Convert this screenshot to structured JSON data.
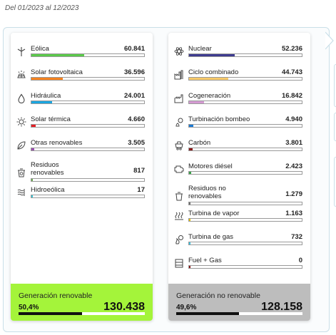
{
  "period": "Del 01/2023 al 12/2023",
  "renewable": {
    "items": [
      {
        "label": "Eólica",
        "value": "60.841",
        "share": 0.466,
        "color": "#5ac94a",
        "icon": "wind-turbine-icon"
      },
      {
        "label": "Solar fotovoltaica",
        "value": "36.596",
        "share": 0.281,
        "color": "#f5821f",
        "icon": "solar-panel-icon"
      },
      {
        "label": "Hidráulica",
        "value": "24.001",
        "share": 0.184,
        "color": "#1aa6e1",
        "icon": "water-drop-icon"
      },
      {
        "label": "Solar térmica",
        "value": "4.660",
        "share": 0.036,
        "color": "#e41e25",
        "icon": "sun-icon"
      },
      {
        "label": "Otras renovables",
        "value": "3.505",
        "share": 0.027,
        "color": "#9b4fb0",
        "icon": "leaf-icon"
      },
      {
        "label": "Residuos renovables",
        "value": "817",
        "share": 0.006,
        "color": "#6aa84f",
        "icon": "recycle-bin-icon"
      },
      {
        "label": "Hidroeólica",
        "value": "17",
        "share": 0.001,
        "color": "#37c3d3",
        "icon": "hydro-wind-icon"
      }
    ],
    "total": {
      "label": "Generación renovable",
      "percent": "50,4%",
      "share": 0.504,
      "value": "130.438",
      "color": "#a4f43a"
    }
  },
  "nonrenewable": {
    "items": [
      {
        "label": "Nuclear",
        "value": "52.236",
        "share": 0.408,
        "color": "#3e3b8f",
        "icon": "atom-icon"
      },
      {
        "label": "Ciclo combinado",
        "value": "44.743",
        "share": 0.349,
        "color": "#f7c96a",
        "icon": "power-plant-icon"
      },
      {
        "label": "Cogeneración",
        "value": "16.842",
        "share": 0.131,
        "color": "#d59ad3",
        "icon": "factory-icon"
      },
      {
        "label": "Turbinación bombeo",
        "value": "4.940",
        "share": 0.039,
        "color": "#1a7ad4",
        "icon": "pump-icon"
      },
      {
        "label": "Carbón",
        "value": "3.801",
        "share": 0.03,
        "color": "#8b1a1a",
        "icon": "coal-cart-icon"
      },
      {
        "label": "Motores diésel",
        "value": "2.423",
        "share": 0.019,
        "color": "#3aa34a",
        "icon": "engine-icon"
      },
      {
        "label": "Residuos no renovables",
        "value": "1.279",
        "share": 0.01,
        "color": "#6d6d6d",
        "icon": "trash-bin-icon"
      },
      {
        "label": "Turbina de vapor",
        "value": "1.163",
        "share": 0.009,
        "color": "#e6c000",
        "icon": "steam-icon"
      },
      {
        "label": "Turbina de gas",
        "value": "732",
        "share": 0.006,
        "color": "#39c0e0",
        "icon": "gas-turbine-icon"
      },
      {
        "label": "Fuel + Gas",
        "value": "0",
        "share": 0.0,
        "color": "#8b1a1a",
        "icon": "fuel-tank-icon"
      }
    ],
    "total": {
      "label": "Generación no renovable",
      "percent": "49,6%",
      "share": 0.496,
      "value": "128.158",
      "color": "#bdbdbd"
    }
  }
}
